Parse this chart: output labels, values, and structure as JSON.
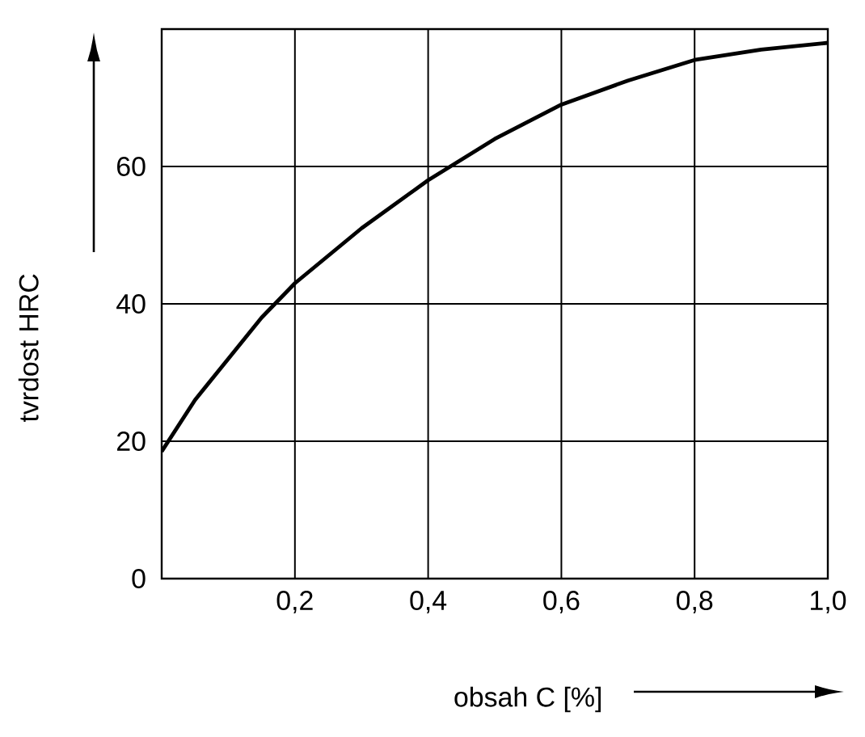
{
  "chart_data": {
    "type": "line",
    "xlabel": "obsah C [%]",
    "ylabel": "tvrdost HRC",
    "x": [
      0,
      0.05,
      0.1,
      0.15,
      0.2,
      0.3,
      0.4,
      0.5,
      0.6,
      0.7,
      0.8,
      0.9,
      1.0
    ],
    "series": [
      {
        "color": "#000000",
        "values": [
          18.5,
          26,
          32,
          38,
          43,
          51,
          58,
          64,
          69,
          72.5,
          75.5,
          77,
          78
        ]
      }
    ],
    "xlim": [
      0,
      1
    ],
    "ylim": [
      0,
      80
    ],
    "xticks": [
      {
        "value": 0.2,
        "label": "0,2"
      },
      {
        "value": 0.4,
        "label": "0,4"
      },
      {
        "value": 0.6,
        "label": "0,6"
      },
      {
        "value": 0.8,
        "label": "0,8"
      },
      {
        "value": 1.0,
        "label": "1,0"
      }
    ],
    "yticks": [
      0,
      20,
      40,
      60
    ],
    "grid": true,
    "marker": "none",
    "line_style": "solid"
  }
}
